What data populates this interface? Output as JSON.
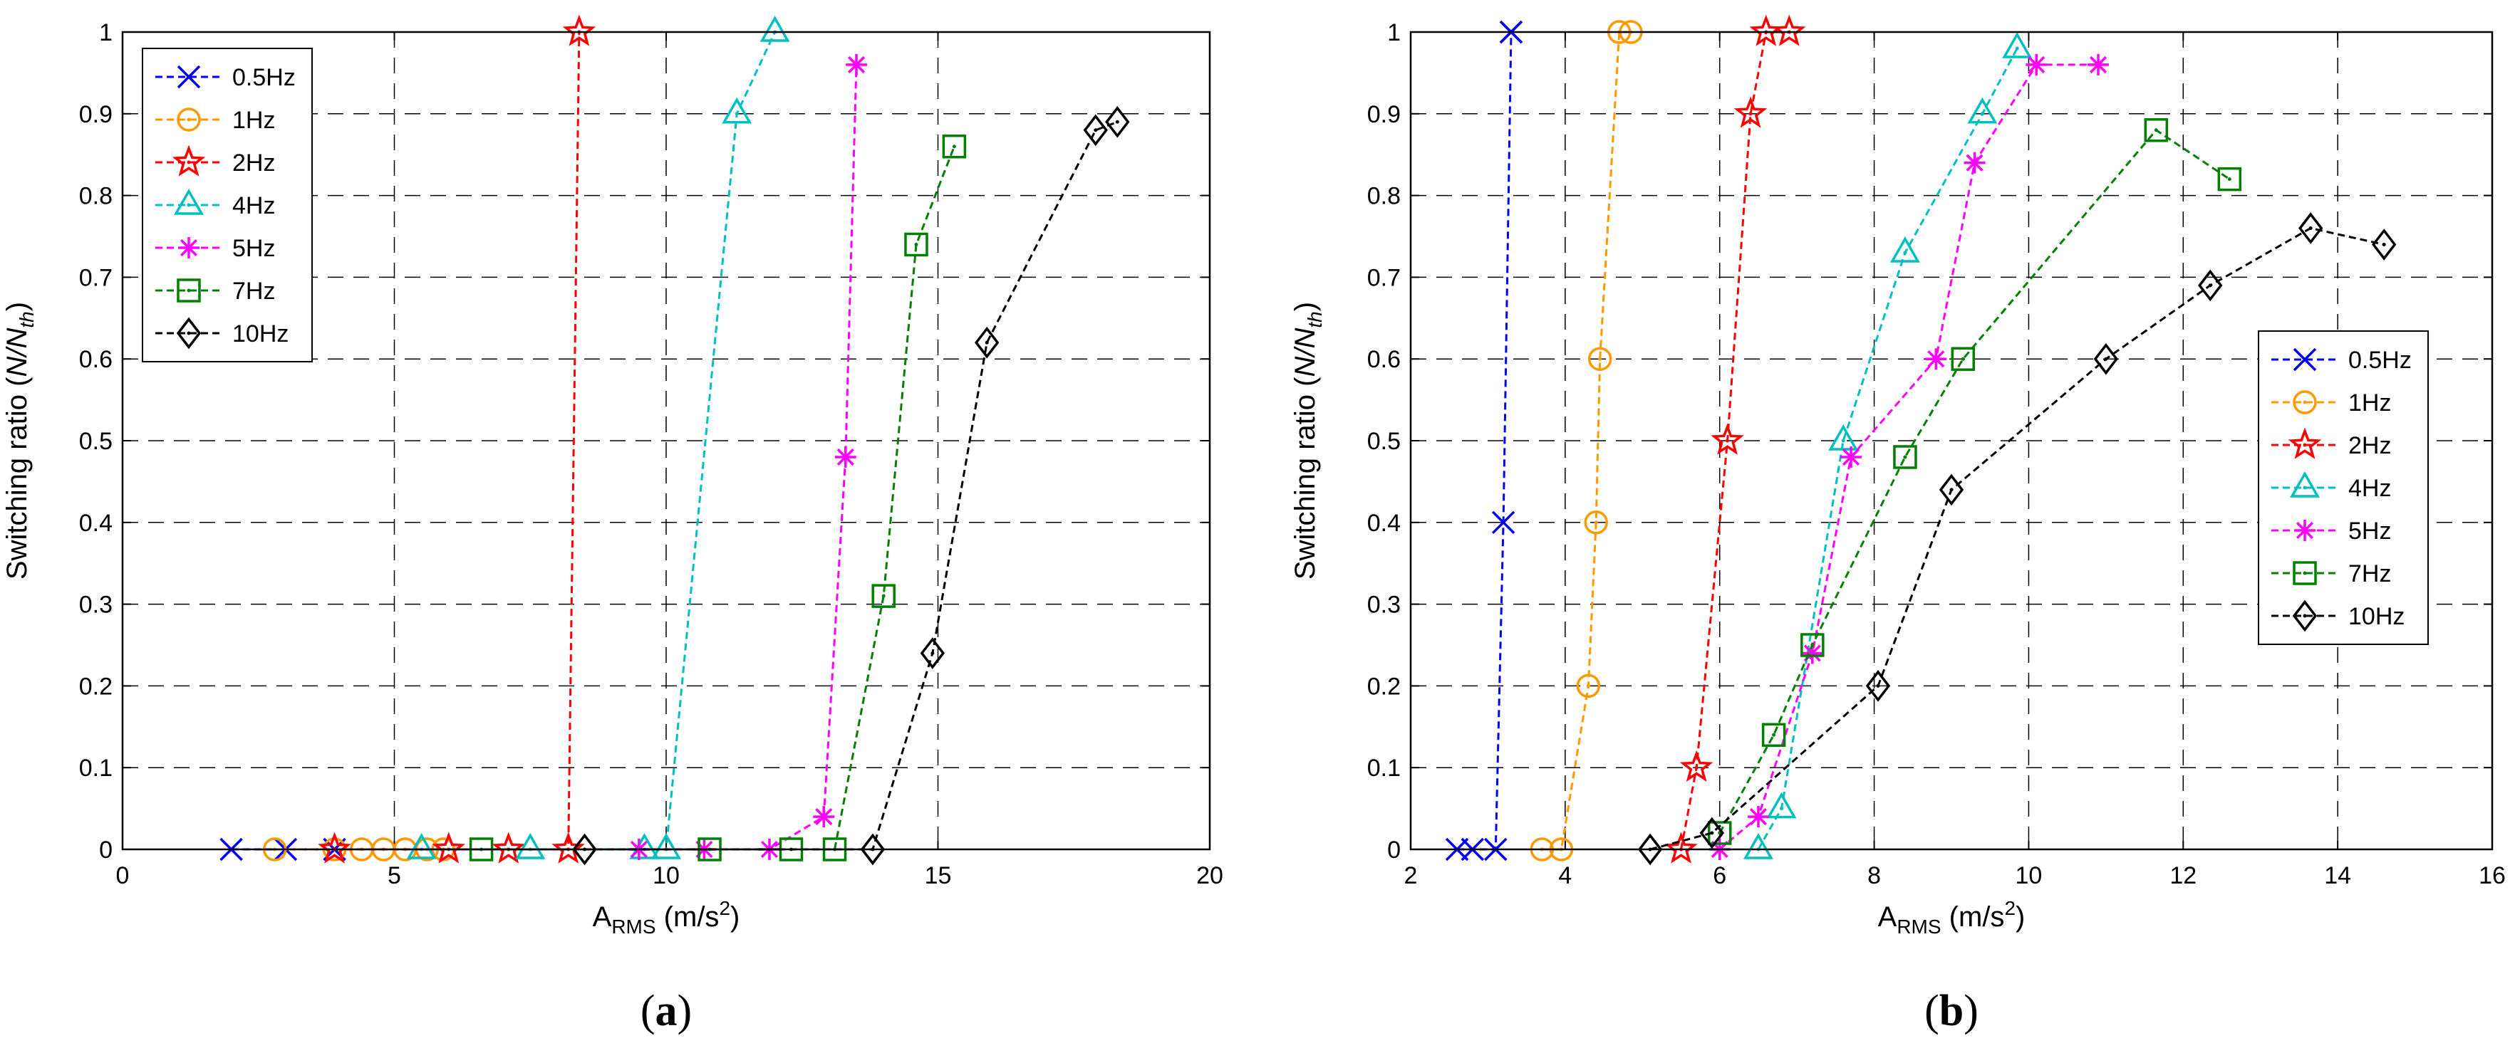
{
  "chart_data": [
    {
      "type": "line",
      "panel_label": "(a)",
      "xlabel": {
        "main": "A",
        "sub": "RMS",
        "unit": "(m/s",
        "sup": "2",
        "close": ")"
      },
      "ylabel": {
        "main": "Switching ratio (",
        "italic": "N/N",
        "sub": "th",
        "close": ")"
      },
      "xlim": [
        0,
        20
      ],
      "ylim": [
        0,
        1
      ],
      "xticks": [
        "0",
        "5",
        "10",
        "15",
        "20"
      ],
      "yticks": [
        "0",
        "0.1",
        "0.2",
        "0.3",
        "0.4",
        "0.5",
        "0.6",
        "0.7",
        "0.8",
        "0.9",
        "1"
      ],
      "grid": true,
      "legend_position": "top-left",
      "series": [
        {
          "name": "0.5Hz",
          "color": "#0000ff",
          "marker": "x",
          "x": [
            2.0,
            3.0,
            3.9
          ],
          "y": [
            0,
            0,
            0
          ]
        },
        {
          "name": "1Hz",
          "color": "#ff9900",
          "marker": "circle",
          "x": [
            2.8,
            3.9,
            4.4,
            4.8,
            5.2,
            5.6,
            5.9
          ],
          "y": [
            0,
            0,
            0,
            0,
            0,
            0,
            0
          ]
        },
        {
          "name": "2Hz",
          "color": "#ff0000",
          "marker": "star",
          "x": [
            3.9,
            6.0,
            7.1,
            8.2,
            8.4
          ],
          "y": [
            0,
            0,
            0,
            0,
            1.0
          ]
        },
        {
          "name": "4Hz",
          "color": "#00bfbf",
          "marker": "triangle",
          "x": [
            5.5,
            7.5,
            9.6,
            10.0,
            11.3,
            12.0
          ],
          "y": [
            0,
            0,
            0,
            0,
            0.9,
            1.0
          ]
        },
        {
          "name": "5Hz",
          "color": "#ff00ff",
          "marker": "asterisk",
          "x": [
            9.5,
            10.7,
            11.9,
            12.9,
            13.3,
            13.5
          ],
          "y": [
            0,
            0,
            0,
            0.04,
            0.48,
            0.96
          ]
        },
        {
          "name": "7Hz",
          "color": "#008000",
          "marker": "square",
          "x": [
            6.6,
            10.8,
            12.3,
            13.1,
            14.0,
            14.6,
            15.3
          ],
          "y": [
            0,
            0,
            0,
            0,
            0.31,
            0.74,
            0.86
          ]
        },
        {
          "name": "10Hz",
          "color": "#000000",
          "marker": "diamond",
          "x": [
            8.5,
            13.8,
            14.9,
            15.9,
            17.9,
            18.3
          ],
          "y": [
            0,
            0,
            0.24,
            0.62,
            0.88,
            0.89
          ]
        }
      ]
    },
    {
      "type": "line",
      "panel_label": "(b)",
      "xlabel": {
        "main": "A",
        "sub": "RMS",
        "unit": "(m/s",
        "sup": "2",
        "close": ")"
      },
      "ylabel": {
        "main": "Switching ratio (",
        "italic": "N/N",
        "sub": "th",
        "close": ")"
      },
      "xlim": [
        2,
        16
      ],
      "ylim": [
        0,
        1
      ],
      "xticks": [
        "2",
        "4",
        "6",
        "8",
        "10",
        "12",
        "14",
        "16"
      ],
      "yticks": [
        "0",
        "0.1",
        "0.2",
        "0.3",
        "0.4",
        "0.5",
        "0.6",
        "0.7",
        "0.8",
        "0.9",
        "1"
      ],
      "grid": true,
      "legend_position": "center-right",
      "series": [
        {
          "name": "0.5Hz",
          "color": "#0000ff",
          "marker": "x",
          "x": [
            2.6,
            2.8,
            3.1,
            3.2,
            3.3,
            3.3
          ],
          "y": [
            0,
            0,
            0,
            0.4,
            1.0,
            1.0
          ]
        },
        {
          "name": "1Hz",
          "color": "#ff9900",
          "marker": "circle",
          "x": [
            3.7,
            3.95,
            4.3,
            4.4,
            4.45,
            4.7,
            4.85
          ],
          "y": [
            0,
            0,
            0.2,
            0.4,
            0.6,
            1.0,
            1.0
          ]
        },
        {
          "name": "2Hz",
          "color": "#ff0000",
          "marker": "star",
          "x": [
            5.5,
            5.7,
            6.1,
            6.4,
            6.6,
            6.9
          ],
          "y": [
            0,
            0.1,
            0.5,
            0.9,
            1.0,
            1.0
          ]
        },
        {
          "name": "4Hz",
          "color": "#00bfbf",
          "marker": "triangle",
          "x": [
            6.5,
            6.8,
            7.6,
            8.4,
            9.4,
            9.85
          ],
          "y": [
            0,
            0.05,
            0.5,
            0.73,
            0.9,
            0.98
          ]
        },
        {
          "name": "5Hz",
          "color": "#ff00ff",
          "marker": "asterisk",
          "x": [
            6.0,
            6.5,
            7.2,
            7.7,
            8.8,
            9.3,
            10.1,
            10.9
          ],
          "y": [
            0,
            0.04,
            0.24,
            0.48,
            0.6,
            0.84,
            0.96,
            0.96
          ]
        },
        {
          "name": "7Hz",
          "color": "#008000",
          "marker": "square",
          "x": [
            6.0,
            6.7,
            7.2,
            8.4,
            9.15,
            11.65,
            12.6
          ],
          "y": [
            0.02,
            0.14,
            0.25,
            0.48,
            0.6,
            0.88,
            0.82
          ]
        },
        {
          "name": "10Hz",
          "color": "#000000",
          "marker": "diamond",
          "x": [
            5.1,
            5.9,
            8.05,
            9.0,
            11.0,
            12.35,
            13.65,
            14.6
          ],
          "y": [
            0,
            0.02,
            0.2,
            0.44,
            0.6,
            0.69,
            0.76,
            0.74
          ]
        }
      ]
    }
  ]
}
